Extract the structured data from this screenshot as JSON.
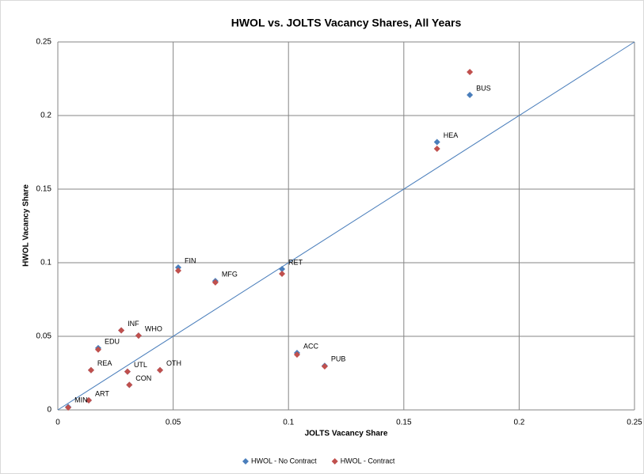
{
  "chart_data": {
    "type": "scatter",
    "title": "HWOL vs. JOLTS Vacancy Shares, All Years",
    "x_label": "JOLTS Vacancy Share",
    "y_label": "HWOL Vacancy Share",
    "point_labels": [
      "BUS",
      "HEA",
      "FIN",
      "MFG",
      "RET",
      "INF",
      "WHO",
      "EDU",
      "ACC",
      "PUB",
      "REA",
      "UTL",
      "OTH",
      "CON",
      "ART",
      "MIN"
    ],
    "x": [
      0.1786,
      0.1644,
      0.0522,
      0.0683,
      0.0972,
      0.0275,
      0.035,
      0.0175,
      0.1037,
      0.1157,
      0.0144,
      0.0302,
      0.0443,
      0.031,
      0.0134,
      0.0045
    ],
    "series": [
      {
        "name": "HWOL  - No Contract",
        "color": "#4a7ebb",
        "values": [
          0.214,
          0.182,
          0.0968,
          0.0876,
          0.0957,
          0.054,
          0.0505,
          0.042,
          0.0387,
          0.03,
          0.027,
          0.026,
          0.027,
          0.017,
          0.0065,
          0.002
        ]
      },
      {
        "name": "HWOL - Contract",
        "color": "#c0504d",
        "values": [
          0.2296,
          0.1774,
          0.0946,
          0.0866,
          0.0925,
          0.054,
          0.0505,
          0.041,
          0.0376,
          0.0296,
          0.027,
          0.026,
          0.027,
          0.017,
          0.0065,
          0.0016
        ]
      }
    ],
    "xlim": [
      0,
      0.25
    ],
    "ylim": [
      0,
      0.25
    ],
    "xticks": [
      0,
      0.05,
      0.1,
      0.15,
      0.2,
      0.25
    ],
    "yticks": [
      0,
      0.05,
      0.1,
      0.15,
      0.2,
      0.25
    ],
    "grid": true,
    "legend": "bottom"
  }
}
